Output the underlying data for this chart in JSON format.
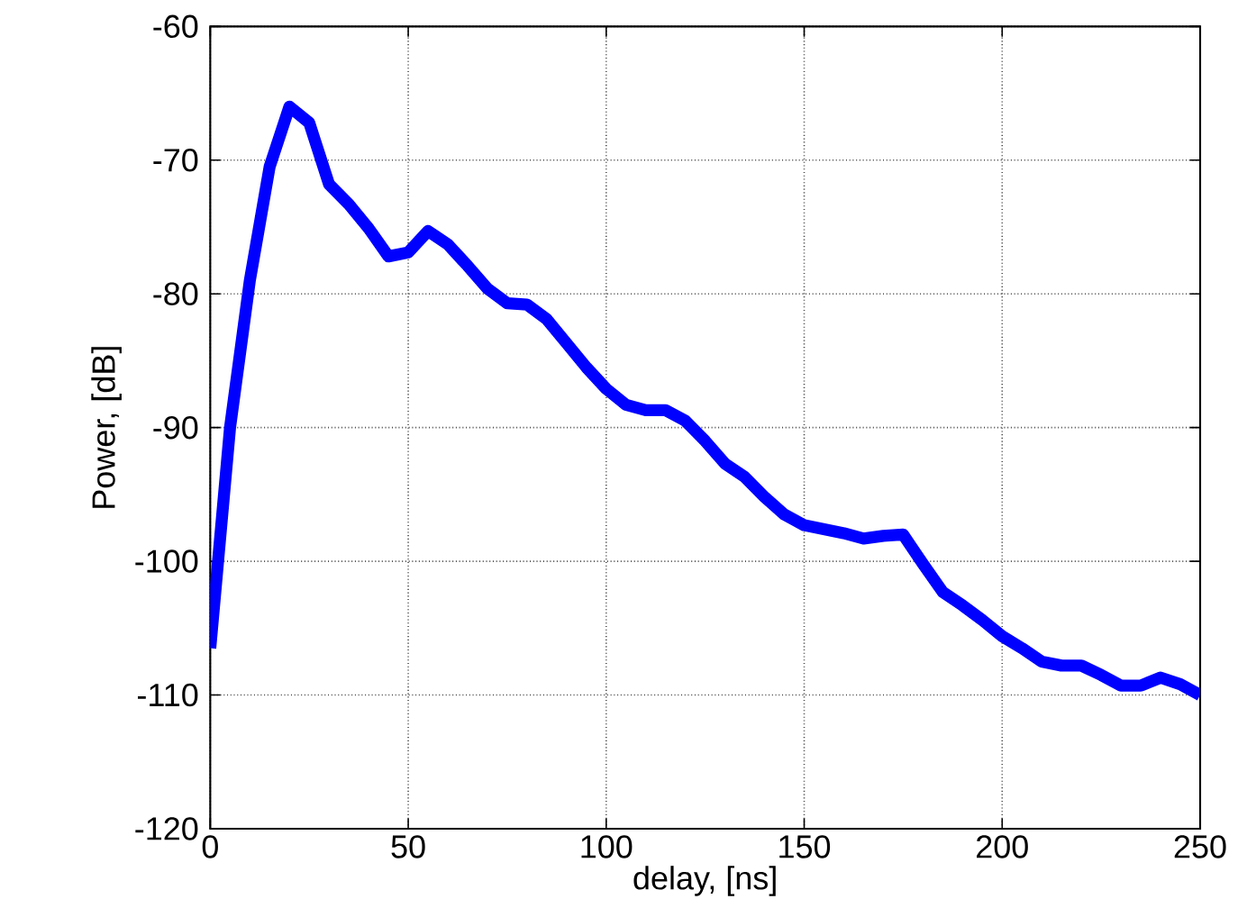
{
  "chart_data": {
    "type": "line",
    "xlabel": "delay, [ns]",
    "ylabel": "Power, [dB]",
    "x": [
      0,
      5,
      10,
      15,
      20,
      25,
      30,
      35,
      40,
      45,
      50,
      55,
      60,
      65,
      70,
      75,
      80,
      85,
      90,
      95,
      100,
      105,
      110,
      115,
      120,
      125,
      130,
      135,
      140,
      145,
      150,
      155,
      160,
      165,
      170,
      175,
      180,
      185,
      190,
      195,
      200,
      205,
      210,
      215,
      220,
      225,
      230,
      235,
      240,
      245,
      250
    ],
    "series": [
      {
        "color": "#0000ff",
        "values": [
          -106.5,
          -90,
          -79,
          -70.5,
          -66,
          -67.2,
          -71.8,
          -73.3,
          -75.1,
          -77.2,
          -76.9,
          -75.3,
          -76.3,
          -77.9,
          -79.6,
          -80.7,
          -80.8,
          -81.9,
          -83.7,
          -85.5,
          -87.1,
          -88.3,
          -88.7,
          -88.7,
          -89.5,
          -91,
          -92.7,
          -93.7,
          -95.2,
          -96.5,
          -97.3,
          -97.6,
          -97.9,
          -98.3,
          -98.1,
          -98,
          -100.2,
          -102.3,
          -103.3,
          -104.4,
          -105.6,
          -106.5,
          -107.5,
          -107.8,
          -107.8,
          -108.5,
          -109.3,
          -109.3,
          -108.7,
          -109.2,
          -110
        ]
      }
    ],
    "xlim": [
      0,
      250
    ],
    "ylim": [
      -120,
      -60
    ],
    "xticks": [
      0,
      50,
      100,
      150,
      200,
      250
    ],
    "yticks": [
      -120,
      -110,
      -100,
      -90,
      -80,
      -70,
      -60
    ],
    "grid": true,
    "line_style": "solid",
    "marker": "none"
  }
}
